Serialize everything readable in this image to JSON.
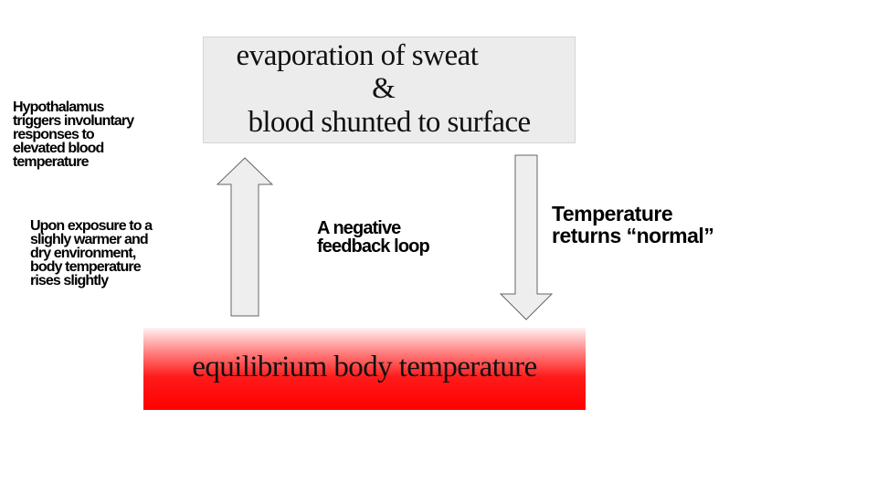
{
  "diagram": {
    "top_box": {
      "line1": "evaporation of sweat",
      "line2": "&",
      "line3": "blood shunted to surface"
    },
    "bottom_box": {
      "label": "equilibrium body temperature",
      "gradient_top": "#fff2f2",
      "gradient_bottom": "#ff0000"
    },
    "hypothalamus_note": {
      "lines": [
        "Hypothalamus",
        "triggers involuntary",
        "responses to",
        "elevated blood",
        "temperature"
      ]
    },
    "exposure_note": {
      "lines": [
        "Upon exposure to a",
        "slighly warmer and",
        "dry environment,",
        "body temperature",
        "rises slightly"
      ]
    },
    "loop_note": {
      "lines": [
        "A negative",
        "feedback loop"
      ]
    },
    "return_note": {
      "lines": [
        "Temperature",
        "returns “normal”"
      ]
    },
    "arrows": {
      "up": "up-arrow",
      "down": "down-arrow",
      "fill": "#eeeeee",
      "stroke": "#666666"
    }
  }
}
